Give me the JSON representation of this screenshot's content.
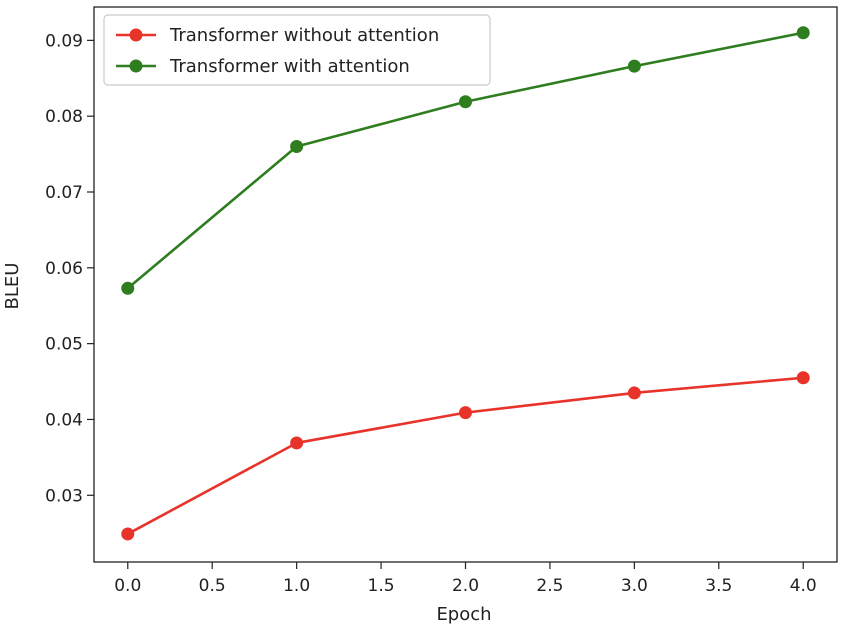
{
  "chart_data": {
    "type": "line",
    "title": "",
    "xlabel": "Epoch",
    "ylabel": "BLEU",
    "x": [
      0.0,
      1.0,
      2.0,
      3.0,
      4.0
    ],
    "xlim": [
      -0.2,
      4.2
    ],
    "ylim": [
      0.0212,
      0.0944
    ],
    "xticks": [
      "0.0",
      "0.5",
      "1.0",
      "1.5",
      "2.0",
      "2.5",
      "3.0",
      "3.5",
      "4.0"
    ],
    "yticks": [
      "0.03",
      "0.04",
      "0.05",
      "0.06",
      "0.07",
      "0.08",
      "0.09"
    ],
    "grid": false,
    "legend_position": "upper-left",
    "series": [
      {
        "name": "Transformer without attention",
        "color": "#e8332a",
        "marker": "circle",
        "values": [
          0.0249,
          0.0369,
          0.0409,
          0.0435,
          0.0455
        ]
      },
      {
        "name": "Transformer with attention",
        "color": "#2e7d1e",
        "marker": "circle",
        "values": [
          0.0573,
          0.076,
          0.0819,
          0.0866,
          0.091
        ]
      }
    ]
  }
}
